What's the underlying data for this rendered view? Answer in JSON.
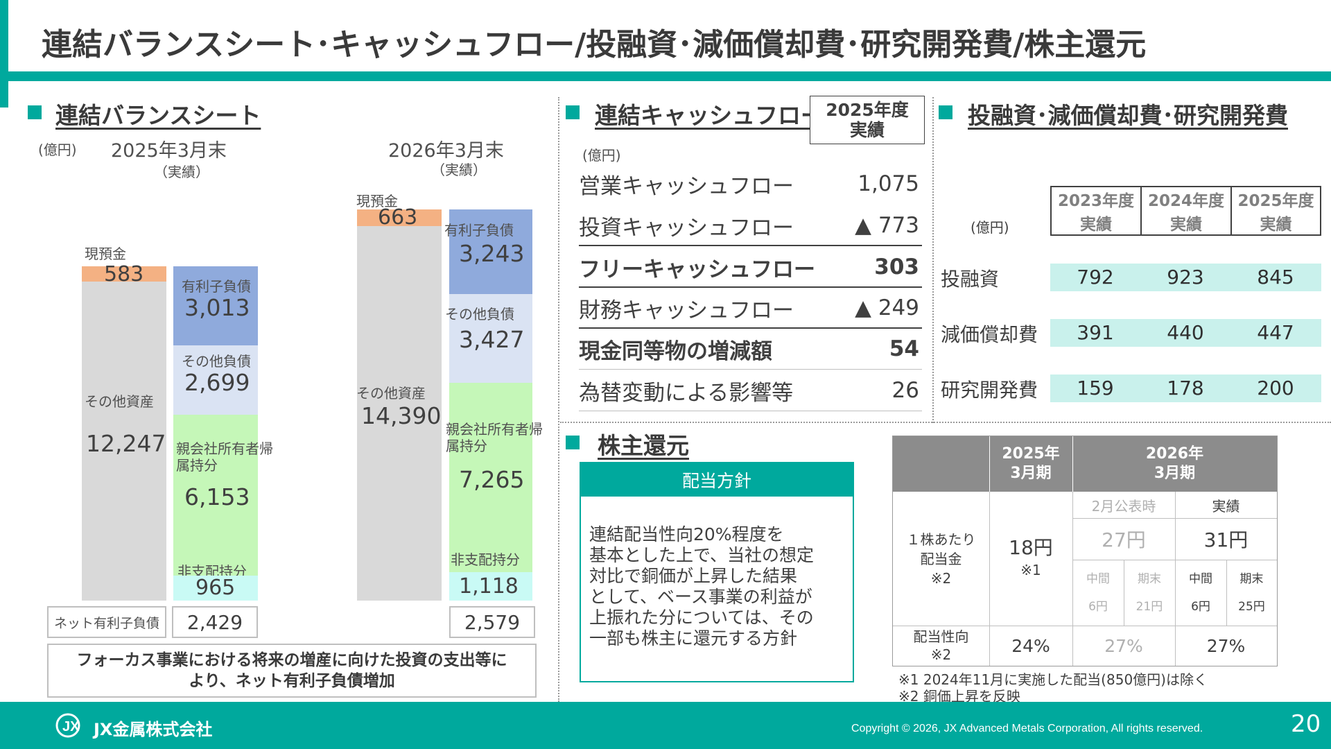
{
  "title": "連結バランスシート･キャッシュフロー/投融資･減価償却費･研究開発費/株主還元",
  "bs": {
    "heading": "連結バランスシート",
    "unit": "(億円)",
    "periods": [
      {
        "label": "2025年3月末",
        "sub": "（実績）",
        "cash_label": "現預金",
        "cash": "583",
        "other_assets_label": "その他資産",
        "other_assets": "12,247",
        "debt_label": "有利子負債",
        "debt": "3,013",
        "other_liab_label": "その他負債",
        "other_liab": "2,699",
        "equity_label": "親会社所有者帰属持分",
        "equity": "6,153",
        "nci_label": "非支配持分",
        "nci": "965",
        "net_debt": "2,429"
      },
      {
        "label": "2026年3月末",
        "sub": "（実績）",
        "cash_label": "現預金",
        "cash": "663",
        "other_assets_label": "その他資産",
        "other_assets": "14,390",
        "debt_label": "有利子負債",
        "debt": "3,243",
        "other_liab_label": "その他負債",
        "other_liab": "3,427",
        "equity_label": "親会社所有者帰属持分",
        "equity": "7,265",
        "nci_label": "非支配持分",
        "nci": "1,118",
        "net_debt": "2,579"
      }
    ],
    "net_debt_label": "ネット有利子負債",
    "note_line1": "フォーカス事業における将来の増産に向けた投資の支出等に",
    "note_line2": "より、ネット有利子負債増加"
  },
  "cf": {
    "heading": "連結キャッシュフロー",
    "badge_line1": "2025年度",
    "badge_line2": "実績",
    "unit": "(億円)",
    "rows": [
      {
        "label": "営業キャッシュフロー",
        "value": "1,075"
      },
      {
        "label": "投資キャッシュフロー",
        "value": "▲ 773"
      },
      {
        "label": "フリーキャッシュフロー",
        "value": "303"
      },
      {
        "label": "財務キャッシュフロー",
        "value": "▲ 249"
      },
      {
        "label": "現金同等物の増減額",
        "value": "54"
      },
      {
        "label": "為替変動による影響等",
        "value": "26"
      }
    ]
  },
  "inv": {
    "heading": "投融資･減価償却費･研究開発費",
    "unit": "(億円)",
    "headers": [
      {
        "year": "2023年度",
        "sub": "実績"
      },
      {
        "year": "2024年度",
        "sub": "実績"
      },
      {
        "year": "2025年度",
        "sub": "実績"
      }
    ],
    "rows": [
      {
        "label": "投融資",
        "values": [
          "792",
          "923",
          "845"
        ]
      },
      {
        "label": "減価償却費",
        "values": [
          "391",
          "440",
          "447"
        ]
      },
      {
        "label": "研究開発費",
        "values": [
          "159",
          "178",
          "200"
        ]
      }
    ]
  },
  "sh": {
    "heading": "株主還元",
    "policy_title": "配当方針",
    "policy_lines": [
      "連結配当性向20%程度を",
      "基本とした上で、当社の想定",
      "対比で銅価が上昇した結果",
      "として、ベース事業の利益が",
      "上振れた分については、その",
      "一部も株主に還元する方針"
    ],
    "table": {
      "h1_line1": "2025年",
      "h1_line2": "3月期",
      "h2_line1": "2026年",
      "h2_line2": "3月期",
      "sub_feb": "2月公表時",
      "sub_actual": "実績",
      "row1_label_line1": "１株あたり",
      "row1_label_line2": "配当金",
      "row1_label_line3": "※2",
      "row1_2025": "18円",
      "row1_2025_note": "※1",
      "row1_feb": "27円",
      "row1_actual": "31円",
      "interim": "中間",
      "final": "期末",
      "feb_interim": "6円",
      "feb_final": "21円",
      "act_interim": "6円",
      "act_final": "25円",
      "row2_label_line1": "配当性向",
      "row2_label_line2": "※2",
      "row2_2025": "24%",
      "row2_feb": "27%",
      "row2_actual": "27%"
    },
    "note1": "※1 2024年11月に実施した配当(850億円)は除く",
    "note2": "※2 銅価上昇を反映"
  },
  "footer": {
    "logo_text": "JX金属株式会社",
    "copyright": "Copyright © 2026, JX Advanced Metals Corporation, All rights reserved.",
    "page": "20"
  },
  "colors": {
    "accent": "#00A99D",
    "cash": "#F4B183",
    "other_assets": "#D9D9D9",
    "debt": "#8FAADC",
    "other_liab": "#DAE3F3",
    "equity": "#C5F7B8",
    "nci": "#C9FAF5"
  }
}
